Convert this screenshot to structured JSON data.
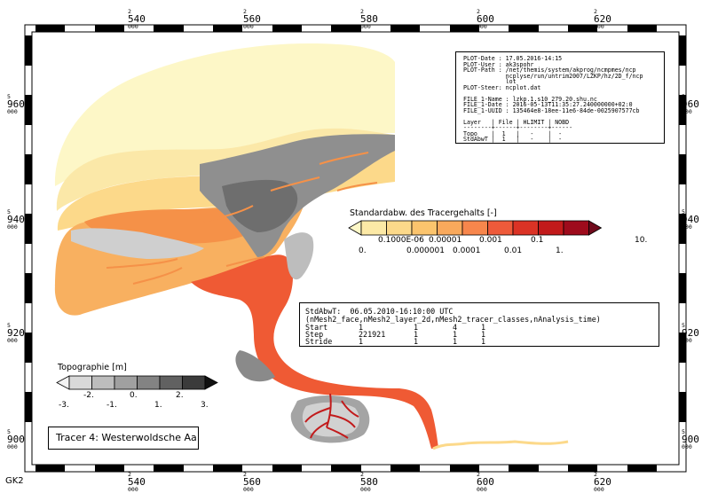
{
  "projection_label": "GK2",
  "tick_labels": {
    "x": [
      {
        "main": "540",
        "sub": "2",
        "end": "000"
      },
      {
        "main": "560",
        "sub": "2",
        "end": "000"
      },
      {
        "main": "580",
        "sub": "2",
        "end": "000"
      },
      {
        "main": "600",
        "sub": "2",
        "end": "000"
      },
      {
        "main": "620",
        "sub": "2",
        "end": "000"
      }
    ],
    "y": [
      {
        "main": "960",
        "sub": "5",
        "end": "000"
      },
      {
        "main": "940",
        "sub": "5",
        "end": "000"
      },
      {
        "main": "920",
        "sub": "5",
        "end": "000"
      },
      {
        "main": "900",
        "sub": "5",
        "end": "000"
      }
    ]
  },
  "plot_info": {
    "lines": [
      "PLOT-Date : 17.05.2016-14:15",
      "PLOT-User : ak3spohr",
      "PLOT-Path : /net/themis/system/akprog/ncmpmes/ncp",
      "            ncplyse/run/untrim2007/LZKP/hz/2D_f/ncp",
      "            lot",
      "PLOT-Steer: ncplot.dat",
      "",
      "FILE_1-Name : lzkp.1.s10_279.20.shu.nc",
      "FILE_1-Date : 2016-05-13T11:35:27.240000000+02:0",
      "FILE_1-UUID : 135464e8-18ee-11e6-84de-0025907577cb",
      "",
      "Layer   | File | HLIMIT | NOBD",
      "--------+------+--------+------",
      "Topo    |  1   |   -    |  -",
      "StdAbwT |  1   |   -    |  -"
    ]
  },
  "tracer_legend": {
    "title": "Standardabw. des Tracergehalts [-]",
    "upper_labels": [
      "0.1000E-06",
      "0.00001",
      "0.001",
      "0.1",
      "10."
    ],
    "lower_labels": [
      "0.",
      "0.000001",
      "0.0001",
      "0.01",
      "1."
    ],
    "colors": [
      "#fdf7c7",
      "#fce9a6",
      "#fcd98a",
      "#fbc46d",
      "#f9a95c",
      "#f7864c",
      "#ee5a3a",
      "#db3325",
      "#c21a1b",
      "#9e0b1c",
      "#700b1c"
    ]
  },
  "topo_legend": {
    "title": "Topographie [m]",
    "upper_labels": [
      "-2.",
      "0.",
      "2."
    ],
    "lower_labels": [
      "-3.",
      "-1.",
      "1.",
      "3."
    ],
    "colors": [
      "#f4f4f4",
      "#d9d9d9",
      "#bdbdbd",
      "#a0a0a0",
      "#838383",
      "#616161",
      "#3b3b3b",
      "#111111"
    ]
  },
  "stats_info": {
    "header": "StdAbwT:  06.05.2010-16:10:00 UTC",
    "dims": "(nMesh2_face,nMesh2_layer_2d,nMesh2_tracer_classes,nAnalysis_time)",
    "rows": [
      {
        "label": "Start",
        "v": [
          "1",
          "1",
          "4",
          "1"
        ]
      },
      {
        "label": "Step",
        "v": [
          "221921",
          "1",
          "1",
          "1"
        ]
      },
      {
        "label": "Stride",
        "v": [
          "1",
          "1",
          "1",
          "1"
        ]
      }
    ]
  },
  "tracer_name": "Tracer 4: Westerwoldsche Aa"
}
